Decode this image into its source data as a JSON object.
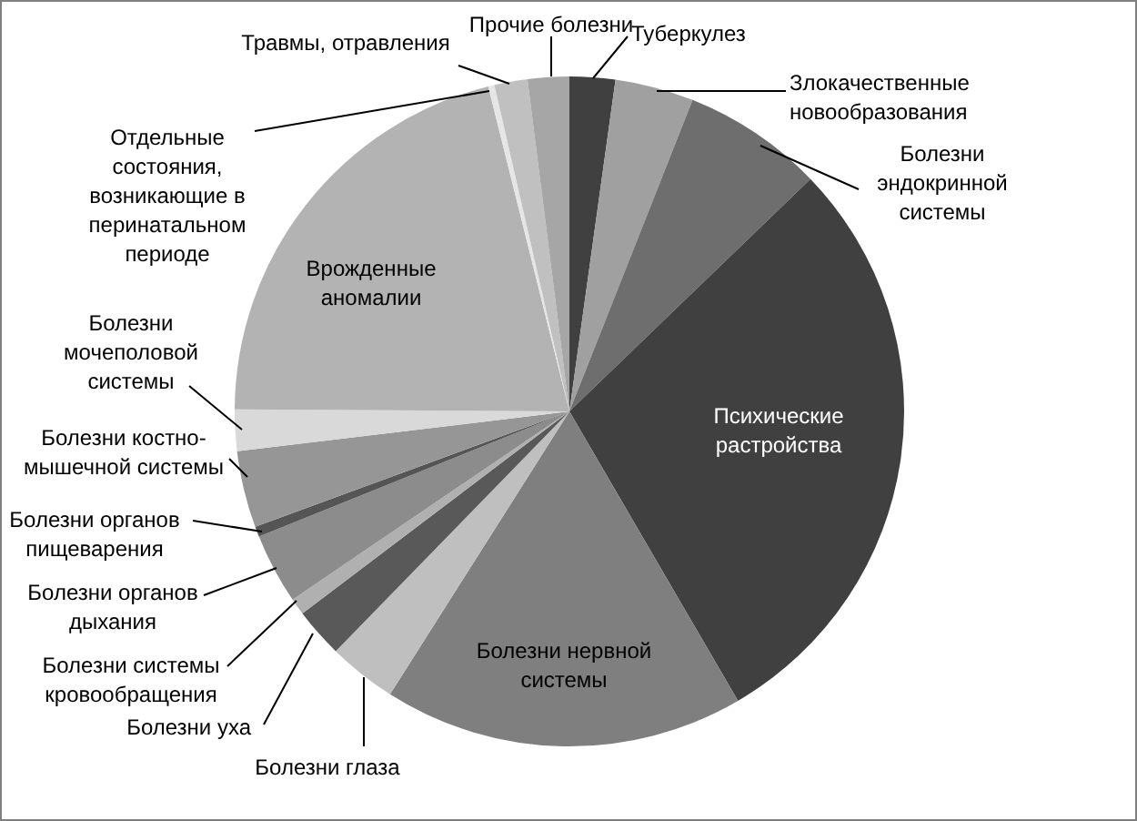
{
  "chart_data": {
    "type": "pie",
    "categories": [
      "Туберкулез",
      "Злокачественные новообразования",
      "Болезни эндокринной системы",
      "Психические растройства",
      "Болезни нервной системы",
      "Болезни глаза",
      "Болезни уха",
      "Болезни системы кровообращения",
      "Болезни органов дыхания",
      "Болезни органов пищеварения",
      "Болезни костно-мышечной системы",
      "Болезни мочеполовой системы",
      "Врожденные аномалии",
      "Отдельные состояния, возникающие в перинатальном периоде",
      "Травмы, отравления",
      "Прочие болезни"
    ],
    "values": [
      2.2,
      3.8,
      6.8,
      28.8,
      17.4,
      3.3,
      2.4,
      0.8,
      3.4,
      0.5,
      3.7,
      2.0,
      21.0,
      0.3,
      1.6,
      2.0
    ],
    "colors": [
      "#404040",
      "#a0a0a0",
      "#6e6e6e",
      "#404040",
      "#7f7f7f",
      "#bfbfbf",
      "#595959",
      "#b0b0b0",
      "#8c8c8c",
      "#555555",
      "#969696",
      "#d9d9d9",
      "#b3b3b3",
      "#e6e6e6",
      "#c0c0c0",
      "#a6a6a6"
    ],
    "legend": false
  }
}
